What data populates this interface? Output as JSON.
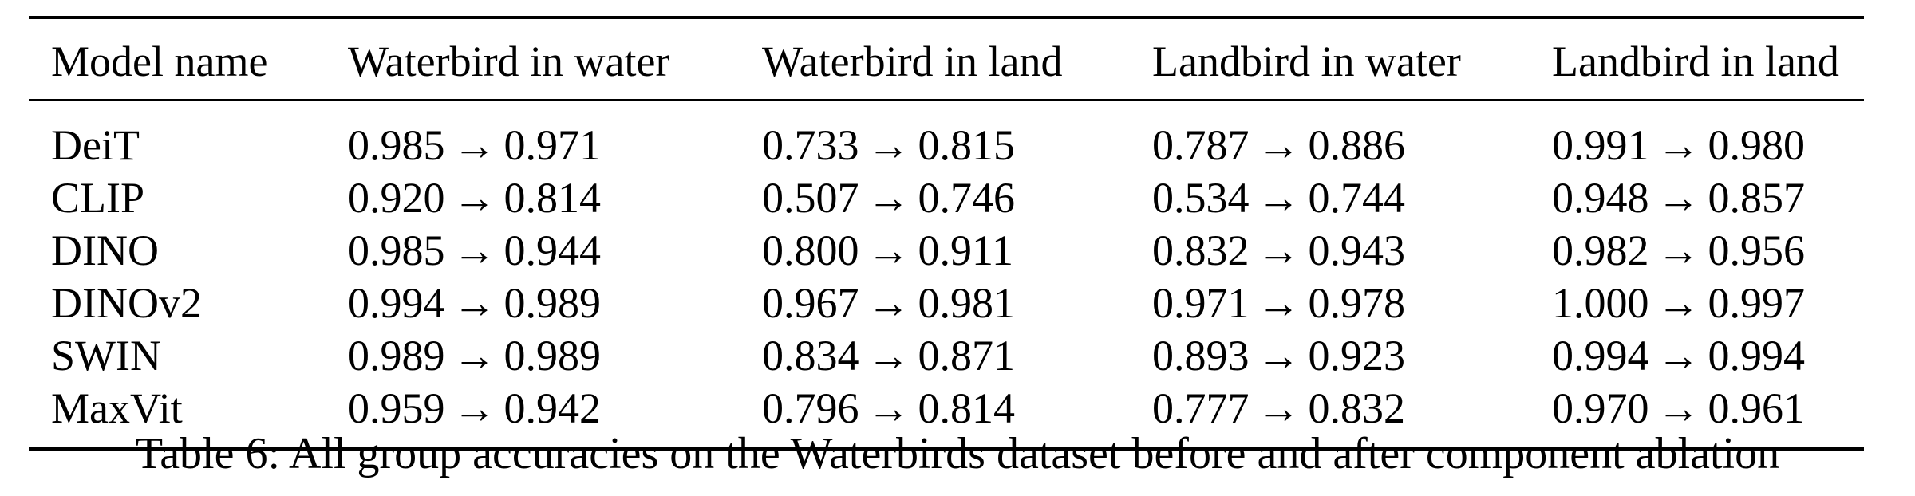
{
  "table": {
    "headers": [
      "Model name",
      "Waterbird in water",
      "Waterbird in land",
      "Landbird in water",
      "Landbird in land"
    ],
    "arrow": "→",
    "rows": [
      {
        "model": "DeiT",
        "cells": [
          {
            "before": "0.985",
            "after": "0.971"
          },
          {
            "before": "0.733",
            "after": "0.815"
          },
          {
            "before": "0.787",
            "after": "0.886"
          },
          {
            "before": "0.991",
            "after": "0.980"
          }
        ]
      },
      {
        "model": "CLIP",
        "cells": [
          {
            "before": "0.920",
            "after": "0.814"
          },
          {
            "before": "0.507",
            "after": "0.746"
          },
          {
            "before": "0.534",
            "after": "0.744"
          },
          {
            "before": "0.948",
            "after": "0.857"
          }
        ]
      },
      {
        "model": "DINO",
        "cells": [
          {
            "before": "0.985",
            "after": "0.944"
          },
          {
            "before": "0.800",
            "after": "0.911"
          },
          {
            "before": "0.832",
            "after": "0.943"
          },
          {
            "before": "0.982",
            "after": "0.956"
          }
        ]
      },
      {
        "model": "DINOv2",
        "cells": [
          {
            "before": "0.994",
            "after": "0.989"
          },
          {
            "before": "0.967",
            "after": "0.981"
          },
          {
            "before": "0.971",
            "after": "0.978"
          },
          {
            "before": "1.000",
            "after": "0.997"
          }
        ]
      },
      {
        "model": "SWIN",
        "cells": [
          {
            "before": "0.989",
            "after": "0.989"
          },
          {
            "before": "0.834",
            "after": "0.871"
          },
          {
            "before": "0.893",
            "after": "0.923"
          },
          {
            "before": "0.994",
            "after": "0.994"
          }
        ]
      },
      {
        "model": "MaxVit",
        "cells": [
          {
            "before": "0.959",
            "after": "0.942"
          },
          {
            "before": "0.796",
            "after": "0.814"
          },
          {
            "before": "0.777",
            "after": "0.832"
          },
          {
            "before": "0.970",
            "after": "0.961"
          }
        ]
      }
    ]
  },
  "caption": "Table 6: All group accuracies on the Waterbirds dataset before and after component ablation"
}
